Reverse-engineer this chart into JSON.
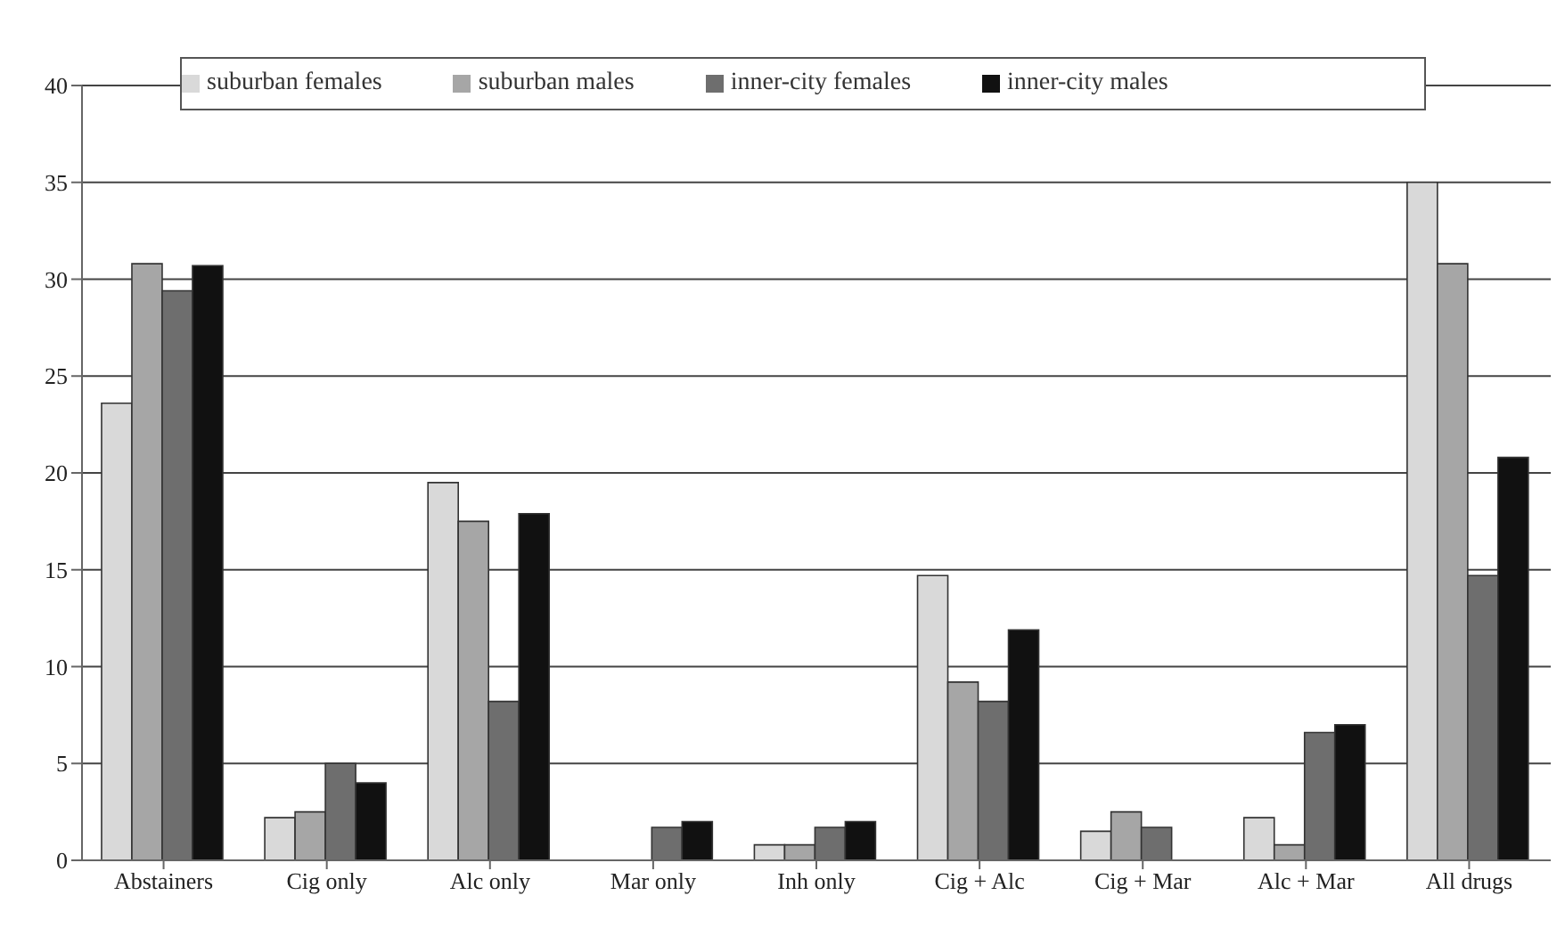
{
  "chart_data": {
    "type": "bar",
    "categories": [
      "Abstainers",
      "Cig only",
      "Alc only",
      "Mar only",
      "Inh only",
      "Cig + Alc",
      "Cig + Mar",
      "Alc + Mar",
      "All drugs"
    ],
    "series": [
      {
        "name": "suburban females",
        "color": "#d9d9d9",
        "values": [
          23.6,
          2.2,
          19.5,
          0,
          0.8,
          14.7,
          1.5,
          2.2,
          35
        ]
      },
      {
        "name": "suburban males",
        "color": "#a6a6a6",
        "values": [
          30.8,
          2.5,
          17.5,
          0,
          0.8,
          9.2,
          2.5,
          0.8,
          30.8
        ]
      },
      {
        "name": "inner-city females",
        "color": "#6e6e6e",
        "values": [
          29.4,
          5,
          8.2,
          1.7,
          1.7,
          8.2,
          1.7,
          6.6,
          14.7
        ]
      },
      {
        "name": "inner-city males",
        "color": "#111111",
        "values": [
          30.7,
          4,
          17.9,
          2,
          2,
          11.9,
          0,
          7,
          20.8
        ]
      }
    ],
    "ylim": [
      0,
      40
    ],
    "yticks": [
      0,
      5,
      10,
      15,
      20,
      25,
      30,
      35,
      40
    ],
    "grid": "y",
    "legend": "top"
  }
}
